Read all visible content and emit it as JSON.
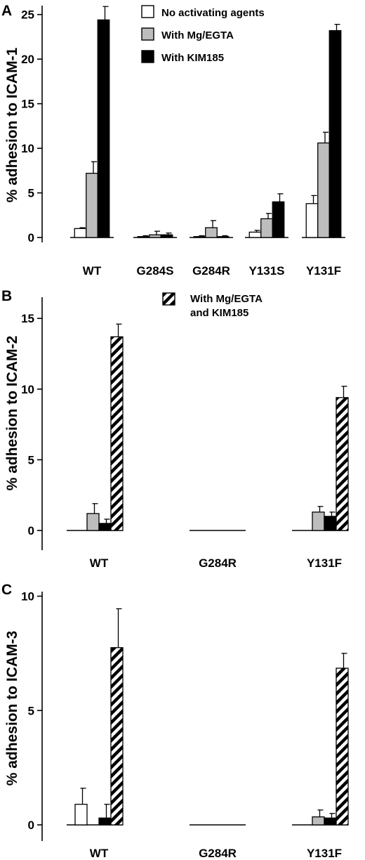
{
  "colors": {
    "none": "#ffffff",
    "mg": "#bdbdbd",
    "kim": "#000000",
    "both_stripe": "#000000"
  },
  "chart_data": [
    {
      "panel_letter": "A",
      "type": "bar",
      "ylabel": "% adhesion to ICAM-1",
      "ylim": [
        0,
        26
      ],
      "yticks": [
        0,
        5,
        10,
        15,
        20,
        25
      ],
      "categories": [
        "WT",
        "G284S",
        "G284R",
        "Y131S",
        "Y131F"
      ],
      "legend": [
        {
          "key": "none",
          "label": "No activating agents"
        },
        {
          "key": "mg",
          "label": "With Mg/EGTA"
        },
        {
          "key": "kim",
          "label": "With KIM185"
        }
      ],
      "series": [
        {
          "key": "none",
          "name": "No activating agents",
          "values": [
            1.0,
            0.1,
            0.1,
            0.6,
            3.8
          ],
          "errors": [
            0.1,
            0.1,
            0.1,
            0.2,
            0.9
          ]
        },
        {
          "key": "mg",
          "name": "With Mg/EGTA",
          "values": [
            7.2,
            0.3,
            1.1,
            2.1,
            10.6
          ],
          "errors": [
            1.3,
            0.4,
            0.8,
            0.6,
            1.2
          ]
        },
        {
          "key": "kim",
          "name": "With KIM185",
          "values": [
            24.4,
            0.3,
            0.1,
            4.0,
            23.2
          ],
          "errors": [
            1.5,
            0.2,
            0.1,
            0.9,
            0.7
          ]
        }
      ]
    },
    {
      "panel_letter": "B",
      "type": "bar",
      "ylabel": "% adhesion to ICAM-2",
      "ylim": [
        0,
        16.5
      ],
      "yticks": [
        0,
        5,
        10,
        15
      ],
      "categories": [
        "WT",
        "G284R",
        "Y131F"
      ],
      "legend": [
        {
          "key": "both",
          "label": "With Mg/EGTA",
          "label2": "and KIM185"
        }
      ],
      "series": [
        {
          "key": "none",
          "name": "",
          "values": [
            0.0,
            0.0,
            0.0
          ],
          "errors": [
            0,
            0,
            0
          ]
        },
        {
          "key": "mg",
          "name": "",
          "values": [
            1.2,
            0.0,
            1.3
          ],
          "errors": [
            0.7,
            0,
            0.4
          ]
        },
        {
          "key": "kim",
          "name": "",
          "values": [
            0.5,
            0.0,
            1.0
          ],
          "errors": [
            0.3,
            0,
            0.3
          ]
        },
        {
          "key": "both",
          "name": "With Mg/EGTA and KIM185",
          "values": [
            13.7,
            0.0,
            9.4
          ],
          "errors": [
            0.9,
            0,
            0.8
          ]
        }
      ]
    },
    {
      "panel_letter": "C",
      "type": "bar",
      "ylabel": "% adhesion to ICAM-3",
      "ylim": [
        0,
        10.2
      ],
      "yticks": [
        0,
        5,
        10
      ],
      "categories": [
        "WT",
        "G284R",
        "Y131F"
      ],
      "legend": [],
      "series": [
        {
          "key": "none",
          "name": "",
          "values": [
            0.9,
            0.0,
            0.0
          ],
          "errors": [
            0.7,
            0,
            0
          ]
        },
        {
          "key": "mg",
          "name": "",
          "values": [
            0.0,
            0.0,
            0.35
          ],
          "errors": [
            0,
            0,
            0.3
          ]
        },
        {
          "key": "kim",
          "name": "",
          "values": [
            0.3,
            0.0,
            0.3
          ],
          "errors": [
            0.6,
            0,
            0.2
          ]
        },
        {
          "key": "both",
          "name": "With Mg/EGTA and KIM185",
          "values": [
            7.75,
            0.0,
            6.85
          ],
          "errors": [
            1.7,
            0,
            0.65
          ]
        }
      ]
    }
  ]
}
